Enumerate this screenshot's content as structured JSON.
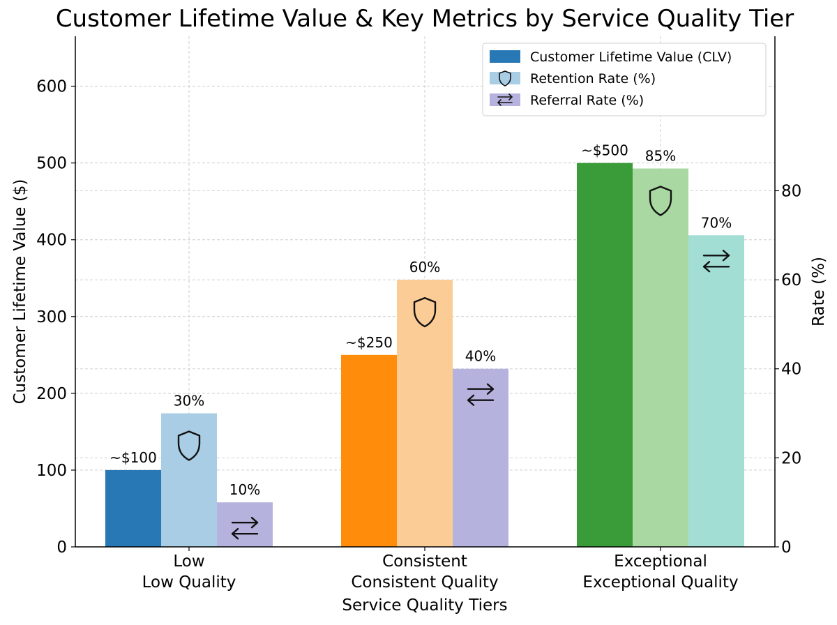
{
  "chart_data": {
    "type": "bar",
    "title": "Customer Lifetime Value & Key Metrics by Service Quality Tier",
    "xlabel": "Service Quality Tiers",
    "ylabel_left": "Customer Lifetime Value ($)",
    "ylabel_right": "Rate (%)",
    "ylim_left": [
      0,
      665
    ],
    "ylim_right": [
      0,
      114.7
    ],
    "yticks_left": [
      0,
      100,
      200,
      300,
      400,
      500,
      600
    ],
    "yticks_right": [
      0,
      20,
      40,
      60,
      80
    ],
    "grid": true,
    "legend_position": "top-right",
    "categories": [
      {
        "label": "Low",
        "sublabel": "Low Quality"
      },
      {
        "label": "Consistent",
        "sublabel": "Consistent Quality"
      },
      {
        "label": "Exceptional",
        "sublabel": "Exceptional Quality"
      }
    ],
    "series": [
      {
        "name": "Customer Lifetime Value (CLV)",
        "axis": "left",
        "values": [
          100,
          250,
          500
        ],
        "labels": [
          "~$100",
          "~$250",
          "~$500"
        ],
        "colors": [
          "#2878b5",
          "#ff8c0a",
          "#3a9c38"
        ],
        "legend_color": "#2878b5",
        "icon": "none"
      },
      {
        "name": "Retention Rate (%)",
        "axis": "right",
        "values": [
          30,
          60,
          85
        ],
        "labels": [
          "30%",
          "60%",
          "85%"
        ],
        "colors": [
          "#a9cde5",
          "#fbcc96",
          "#aad8a2"
        ],
        "legend_color": "#a9cde5",
        "icon": "shield-icon"
      },
      {
        "name": "Referral Rate (%)",
        "axis": "right",
        "values": [
          10,
          40,
          70
        ],
        "labels": [
          "10%",
          "40%",
          "70%"
        ],
        "colors": [
          "#b5b2dd",
          "#b5b2dd",
          "#a3ded5"
        ],
        "legend_color": "#b5b2dd",
        "icon": "swap-arrows-icon"
      }
    ]
  }
}
